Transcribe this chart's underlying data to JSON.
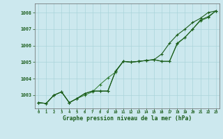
{
  "x": [
    0,
    1,
    2,
    3,
    4,
    5,
    6,
    7,
    8,
    9,
    10,
    11,
    12,
    13,
    14,
    15,
    16,
    17,
    18,
    19,
    20,
    21,
    22,
    23
  ],
  "line1": [
    1002.55,
    1002.5,
    1003.0,
    1003.2,
    1002.55,
    1002.8,
    1003.1,
    1003.25,
    1003.25,
    1003.25,
    1004.45,
    1005.05,
    1005.0,
    1005.05,
    1005.1,
    1005.15,
    1005.05,
    1005.05,
    1006.15,
    1006.5,
    1007.0,
    1007.55,
    1007.75,
    1008.1
  ],
  "line2": [
    1002.55,
    1002.5,
    1003.0,
    1003.2,
    1002.55,
    1002.8,
    1003.0,
    1003.2,
    1003.65,
    1004.05,
    1004.4,
    1005.05,
    1005.0,
    1005.05,
    1005.1,
    1005.15,
    1005.05,
    1005.05,
    1006.1,
    1006.5,
    1007.0,
    1007.5,
    1007.7,
    1008.1
  ],
  "line3": [
    1002.55,
    1002.5,
    1003.0,
    1003.2,
    1002.55,
    1002.8,
    1003.1,
    1003.25,
    1003.25,
    1003.25,
    1004.45,
    1005.05,
    1005.0,
    1005.05,
    1005.1,
    1005.15,
    1005.5,
    1006.15,
    1006.65,
    1007.0,
    1007.4,
    1007.65,
    1008.0,
    1008.1
  ],
  "line_color": "#1a5c1a",
  "line_color2": "#2d7a2d",
  "bg_color": "#cce8ee",
  "grid_color": "#aad4da",
  "xlabel": "Graphe pression niveau de la mer (hPa)",
  "ylim": [
    1002.2,
    1008.55
  ],
  "yticks": [
    1003,
    1004,
    1005,
    1006,
    1007,
    1008
  ],
  "xticks": [
    0,
    1,
    2,
    3,
    4,
    5,
    6,
    7,
    8,
    9,
    10,
    11,
    12,
    13,
    14,
    15,
    16,
    17,
    18,
    19,
    20,
    21,
    22,
    23
  ]
}
